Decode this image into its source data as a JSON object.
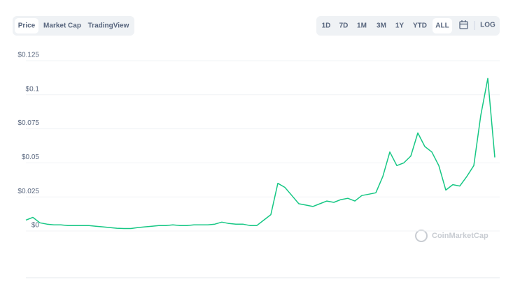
{
  "tabs": [
    "Price",
    "Market Cap",
    "TradingView"
  ],
  "ranges": [
    "1D",
    "7D",
    "1M",
    "3M",
    "1Y",
    "YTD",
    "ALL"
  ],
  "log_button": "LOG",
  "watermark": "CoinMarketCap",
  "chart_data": {
    "type": "line",
    "series": [
      {
        "name": "Price",
        "color": "#16c784",
        "values": [
          0.008,
          0.01,
          0.006,
          0.005,
          0.0045,
          0.0045,
          0.004,
          0.004,
          0.004,
          0.004,
          0.0035,
          0.003,
          0.0025,
          0.002,
          0.0018,
          0.0018,
          0.0025,
          0.003,
          0.0035,
          0.004,
          0.004,
          0.0045,
          0.004,
          0.004,
          0.0045,
          0.0045,
          0.0045,
          0.005,
          0.0065,
          0.0055,
          0.005,
          0.005,
          0.004,
          0.004,
          0.008,
          0.012,
          0.035,
          0.032,
          0.026,
          0.02,
          0.019,
          0.018,
          0.02,
          0.022,
          0.021,
          0.023,
          0.024,
          0.022,
          0.026,
          0.027,
          0.028,
          0.04,
          0.058,
          0.048,
          0.05,
          0.055,
          0.072,
          0.062,
          0.058,
          0.048,
          0.03,
          0.034,
          0.033,
          0.04,
          0.048,
          0.085,
          0.112,
          0.054
        ]
      }
    ],
    "ylim": [
      0,
      0.125
    ],
    "yticks": [
      {
        "value": 0,
        "label": "$0"
      },
      {
        "value": 0.025,
        "label": "$0.025"
      },
      {
        "value": 0.05,
        "label": "$0.05"
      },
      {
        "value": 0.075,
        "label": "$0.075"
      },
      {
        "value": 0.1,
        "label": "$0.1"
      },
      {
        "value": 0.125,
        "label": "$0.125"
      }
    ],
    "grid": true
  }
}
